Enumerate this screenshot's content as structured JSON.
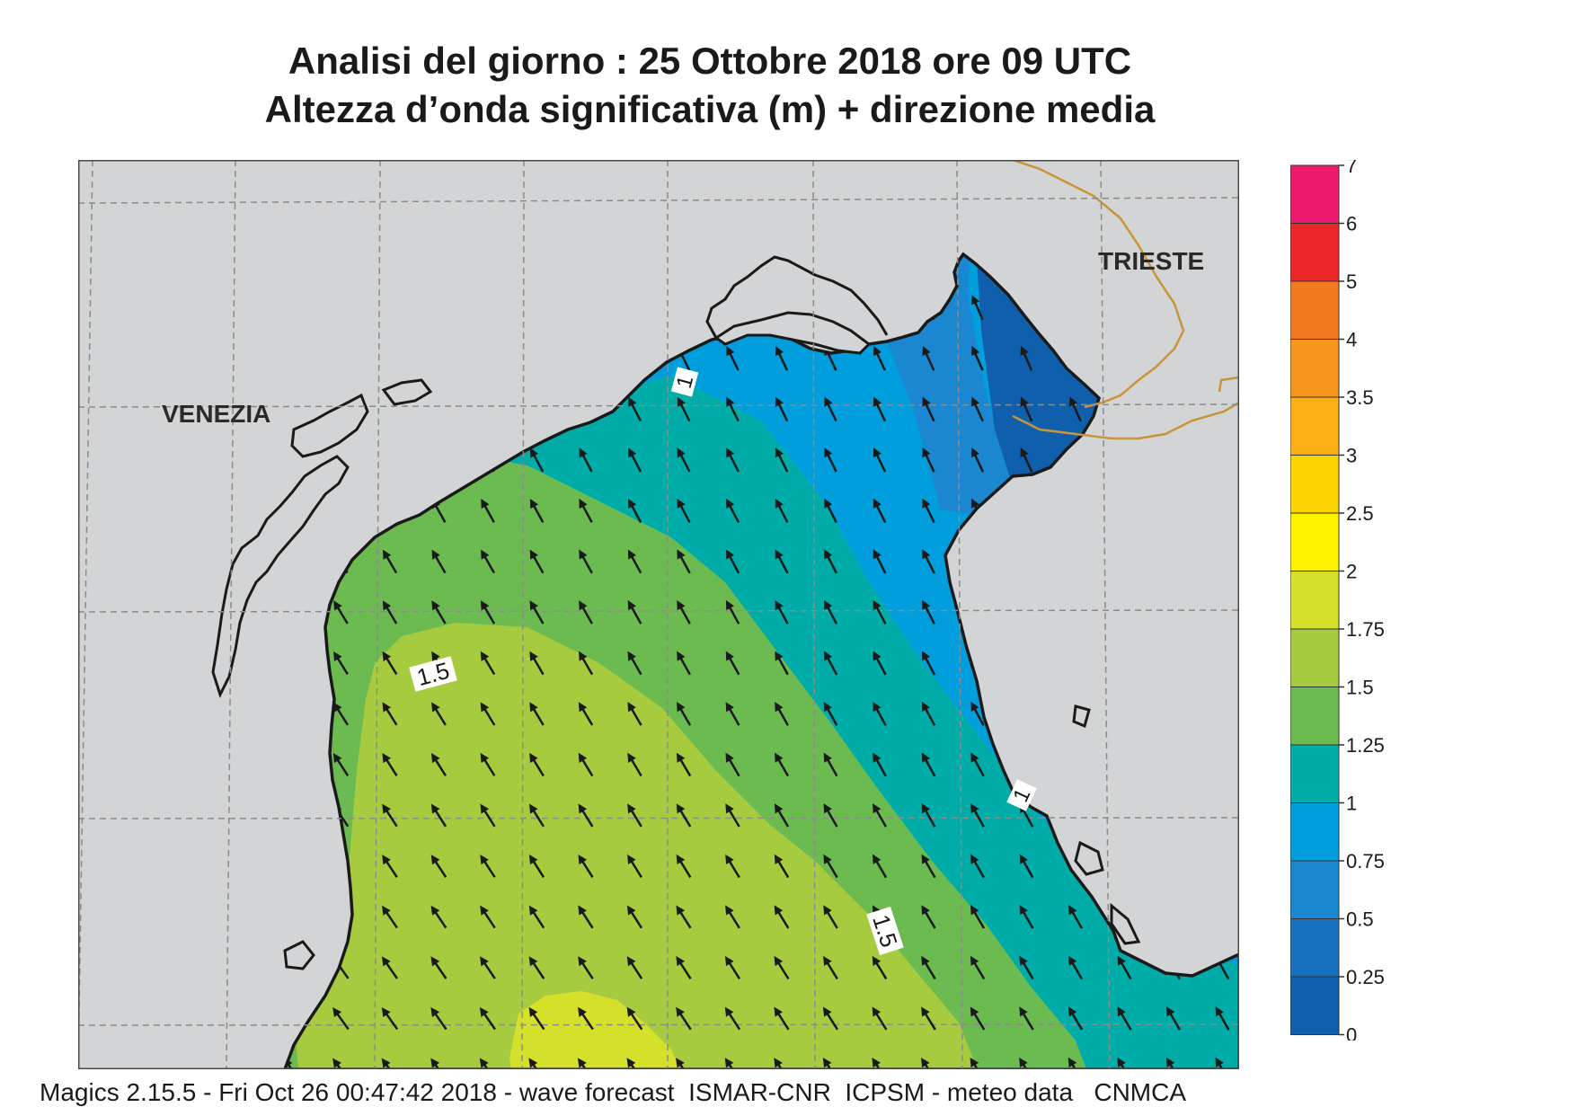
{
  "header": {
    "title_line1": "Analisi del giorno :  25  Ottobre  2018   ore 09 UTC",
    "title_line2": "Altezza d’onda significativa (m) + direzione media"
  },
  "map": {
    "places": [
      {
        "name": "VENEZIA"
      },
      {
        "name": "TRIESTE"
      }
    ],
    "contour_labels": [
      "1",
      "1.5",
      "1",
      "1.5"
    ],
    "colors": {
      "land": "#d3d4d5",
      "coast": "#1a1a1a",
      "border": "#c9953a",
      "grid": "#8c8c8c"
    },
    "wave_direction": "north-northwest"
  },
  "legend": {
    "ticks": [
      "7",
      "6",
      "5",
      "4",
      "3.5",
      "3",
      "2.5",
      "2",
      "1.75",
      "1.5",
      "1.25",
      "1",
      "0.75",
      "0.5",
      "0.25",
      "0"
    ],
    "colors": [
      "#ef1a6e",
      "#ec2629",
      "#f47a21",
      "#f7961d",
      "#fbb116",
      "#fdd400",
      "#fff200",
      "#d5e02a",
      "#a6cb3f",
      "#6cbb50",
      "#00aca8",
      "#009edc",
      "#1b87d1",
      "#1670be",
      "#0f5fad"
    ]
  },
  "footer": {
    "text": "Magics 2.15.5 - Fri Oct 26 00:47:42 2018 - wave forecast  ISMAR-CNR  ICPSM - meteo data   CNMCA"
  }
}
